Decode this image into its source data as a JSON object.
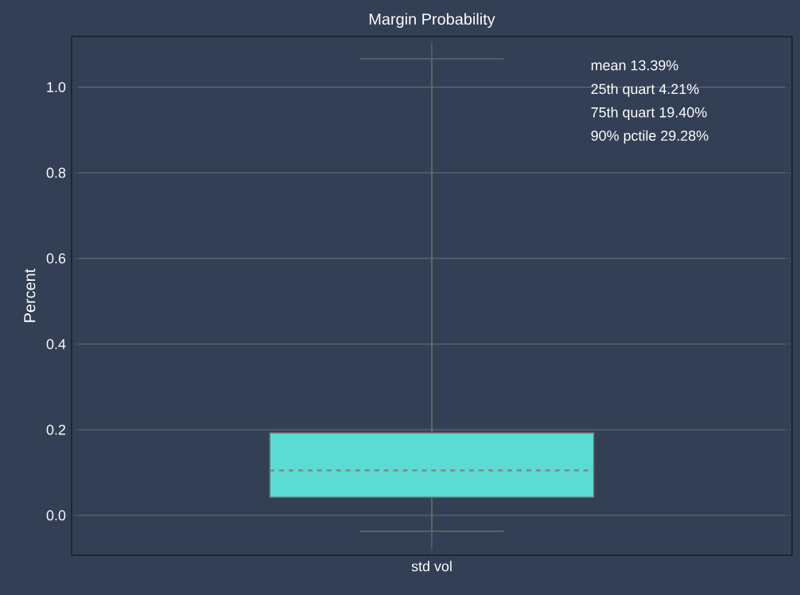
{
  "chart_data": {
    "type": "box",
    "title": "Margin Probability",
    "ylabel": "Percent",
    "categories": [
      "std vol"
    ],
    "boxes": [
      {
        "low": -0.037,
        "q1": 0.042,
        "median": 0.105,
        "q3": 0.193,
        "high": 1.066
      }
    ],
    "color": "#5cdbd3",
    "ylim": [
      -0.093,
      1.118
    ],
    "yticks": [
      {
        "value": 0,
        "label": "0.0"
      },
      {
        "value": 0.2,
        "label": "0.2"
      },
      {
        "value": 0.4,
        "label": "0.4"
      },
      {
        "value": 0.6,
        "label": "0.6"
      },
      {
        "value": 0.8,
        "label": "0.8"
      },
      {
        "value": 1,
        "label": "1.0"
      }
    ],
    "grid": true,
    "annotations": [
      "mean 13.39%",
      "25th quart 4.21%",
      "75th quart 19.40%",
      "90% pctile 29.28%"
    ]
  }
}
